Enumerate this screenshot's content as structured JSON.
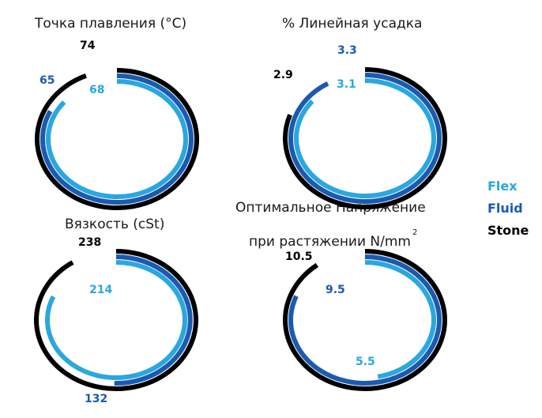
{
  "colors": {
    "Flex": "#2aa7df",
    "Fluid": "#1a5bb0",
    "Stone": "#000000"
  },
  "legend": {
    "items": [
      "Flex",
      "Fluid",
      "Stone"
    ],
    "placement": "right"
  },
  "chart_data": [
    {
      "type": "radial-bar",
      "title": "Точка плавления (°C)",
      "max": 79,
      "series": [
        {
          "name": "Flex",
          "value": 68
        },
        {
          "name": "Fluid",
          "value": 65
        },
        {
          "name": "Stone",
          "value": 74
        }
      ]
    },
    {
      "type": "radial-bar",
      "title": "% Линейная усадка",
      "max": 3.6,
      "series": [
        {
          "name": "Flex",
          "value": 3.1
        },
        {
          "name": "Fluid",
          "value": 3.3
        },
        {
          "name": "Stone",
          "value": 2.9
        }
      ]
    },
    {
      "type": "radial-bar",
      "title": "Вязкость (cSt)",
      "max": 262,
      "series": [
        {
          "name": "Flex",
          "value": 214
        },
        {
          "name": "Fluid",
          "value": 132
        },
        {
          "name": "Stone",
          "value": 238
        }
      ]
    },
    {
      "type": "radial-bar",
      "title_line1": "Оптимальное Напряжение",
      "title_line2": "при растяжении N/mm",
      "title_sup": "2",
      "max": 11.7,
      "series": [
        {
          "name": "Flex",
          "value": 5.5
        },
        {
          "name": "Fluid",
          "value": 9.5
        },
        {
          "name": "Stone",
          "value": 10.5
        }
      ]
    }
  ]
}
